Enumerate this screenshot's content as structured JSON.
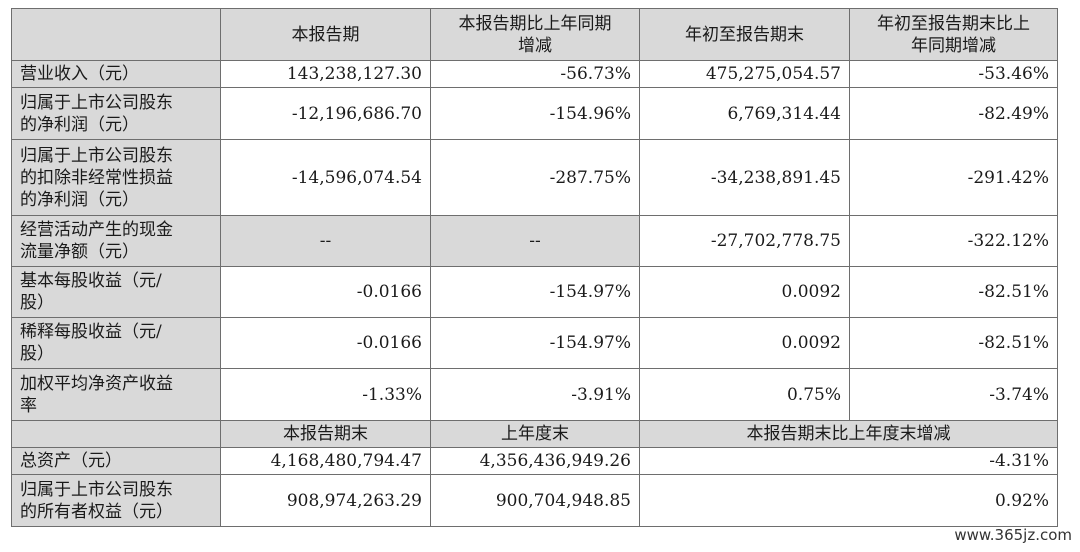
{
  "header": {
    "col1": "本报告期",
    "col2": [
      "本报告期比上年同期",
      "增减"
    ],
    "col3": "年初至报告期末",
    "col4": [
      "年初至报告期末比上",
      "年同期增减"
    ]
  },
  "rows": [
    {
      "label": [
        "营业收入（元）"
      ],
      "v1": "143,238,127.30",
      "v2": "-56.73%",
      "v3": "475,275,054.57",
      "v4": "-53.46%"
    },
    {
      "label": [
        "归属于上市公司股东",
        "的净利润（元）"
      ],
      "v1": "-12,196,686.70",
      "v2": "-154.96%",
      "v3": "6,769,314.44",
      "v4": "-82.49%"
    },
    {
      "label": [
        "归属于上市公司股东",
        "的扣除非经常性损益",
        "的净利润（元）"
      ],
      "v1": "-14,596,074.54",
      "v2": "-287.75%",
      "v3": "-34,238,891.45",
      "v4": "-291.42%"
    },
    {
      "label": [
        "经营活动产生的现金",
        "流量净额（元）"
      ],
      "v1": "--",
      "v2": "--",
      "v3": "-27,702,778.75",
      "v4": "-322.12%"
    },
    {
      "label": [
        "基本每股收益（元/",
        "股）"
      ],
      "v1": "-0.0166",
      "v2": "-154.97%",
      "v3": "0.0092",
      "v4": "-82.51%"
    },
    {
      "label": [
        "稀释每股收益（元/",
        "股）"
      ],
      "v1": "-0.0166",
      "v2": "-154.97%",
      "v3": "0.0092",
      "v4": "-82.51%"
    },
    {
      "label": [
        "加权平均净资产收益",
        "率"
      ],
      "v1": "-1.33%",
      "v2": "-3.91%",
      "v3": "0.75%",
      "v4": "-3.74%"
    }
  ],
  "header2": {
    "col1": "本报告期末",
    "col2": "上年度末",
    "col3": "本报告期末比上年度末增减"
  },
  "rows2": [
    {
      "label": [
        "总资产（元）"
      ],
      "v1": "4,168,480,794.47",
      "v2": "4,356,436,949.26",
      "v3": "-4.31%"
    },
    {
      "label": [
        "归属于上市公司股东",
        "的所有者权益（元）"
      ],
      "v1": "908,974,263.29",
      "v2": "900,704,948.85",
      "v3": "0.92%"
    }
  ],
  "watermark": "www.365jz.com"
}
